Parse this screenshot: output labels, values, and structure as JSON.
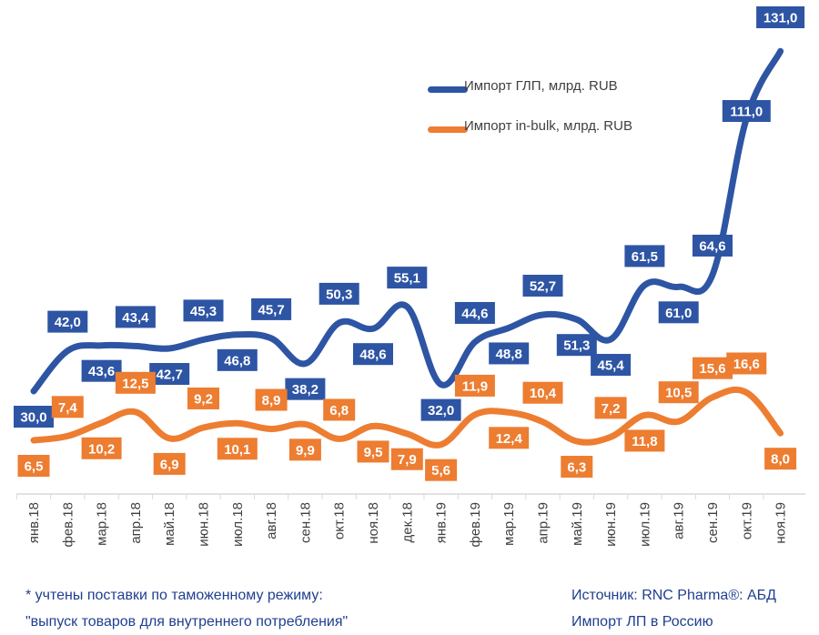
{
  "chart_data": {
    "type": "line",
    "categories": [
      "янв.18",
      "фев.18",
      "мар.18",
      "апр.18",
      "май.18",
      "июн.18",
      "июл.18",
      "авг.18",
      "сен.18",
      "окт.18",
      "ноя.18",
      "дек.18",
      "янв.19",
      "фев.19",
      "мар.19",
      "апр.19",
      "май.19",
      "июн.19",
      "июл.19",
      "авг.19",
      "сен.19",
      "окт.19",
      "ноя.19"
    ],
    "series": [
      {
        "name": "Импорт ГЛП, млрд. RUB",
        "color": "#2e55a4",
        "values": [
          30.0,
          42.0,
          43.6,
          43.4,
          42.7,
          45.3,
          46.8,
          45.7,
          38.2,
          50.3,
          48.6,
          55.1,
          32.0,
          44.6,
          48.8,
          52.7,
          51.3,
          45.4,
          61.5,
          61.0,
          64.6,
          111.0,
          131.0
        ],
        "labels": [
          "30,0",
          "42,0",
          "43,6",
          "43,4",
          "42,7",
          "45,3",
          "46,8",
          "45,7",
          "38,2",
          "50,3",
          "48,6",
          "55,1",
          "32,0",
          "44,6",
          "48,8",
          "52,7",
          "51,3",
          "45,4",
          "61,5",
          "61,0",
          "64,6",
          "111,0",
          "131,0"
        ]
      },
      {
        "name": "Импорт in-bulk, млрд. RUB",
        "color": "#ed7d31",
        "values": [
          6.5,
          7.4,
          10.2,
          12.5,
          6.9,
          9.2,
          10.1,
          8.9,
          9.9,
          6.8,
          9.5,
          7.9,
          5.6,
          11.9,
          12.4,
          10.4,
          6.3,
          7.2,
          11.8,
          10.5,
          15.6,
          16.6,
          8.0
        ],
        "labels": [
          "6,5",
          "7,4",
          "10,2",
          "12,5",
          "6,9",
          "9,2",
          "10,1",
          "8,9",
          "9,9",
          "6,8",
          "9,5",
          "7,9",
          "5,6",
          "11,9",
          "12,4",
          "10,4",
          "6,3",
          "7,2",
          "11,8",
          "10,5",
          "15,6",
          "16,6",
          "8,0"
        ]
      }
    ],
    "legend_position": "top-right",
    "grid": false
  },
  "footnote": {
    "line1": "* учтены поставки по таможенному режиму:",
    "line2": "\"выпуск товаров для внутреннего потребления\""
  },
  "source": {
    "line1": "Источник: RNC Pharma®: АБД",
    "line2": "Импорт ЛП в Россию"
  }
}
